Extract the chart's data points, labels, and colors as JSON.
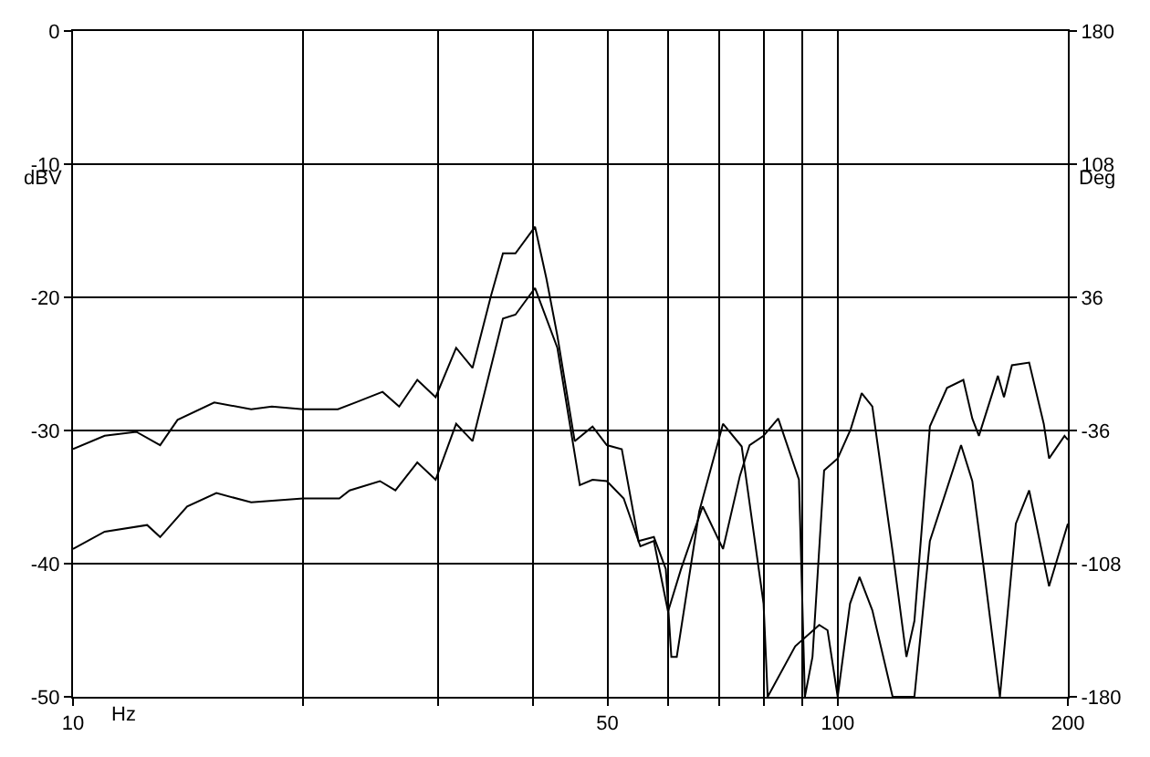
{
  "chart_data": {
    "type": "line",
    "xlabel": "Hz",
    "ylabel": "dBV",
    "y2label": "Deg",
    "log": "x",
    "grid": true,
    "marker": "none",
    "line_style": "solid",
    "xlim": [
      10,
      200
    ],
    "xticks": [
      10,
      {
        "value": 20,
        "label": null
      },
      {
        "value": 30,
        "label": null
      },
      {
        "value": 40,
        "label": null
      },
      50,
      {
        "value": 60,
        "label": null
      },
      {
        "value": 70,
        "label": null
      },
      {
        "value": 80,
        "label": null
      },
      {
        "value": 90,
        "label": null
      },
      100,
      200
    ],
    "ylim": [
      -50,
      0
    ],
    "yticks": [
      0,
      -10,
      -20,
      -30,
      -40,
      -50
    ],
    "y2lim": [
      -180,
      180
    ],
    "y2ticks": [
      180,
      108,
      36,
      -36,
      -108,
      -180
    ],
    "series": [
      {
        "color": "#000000",
        "x": [
          10,
          11,
          12.1,
          13,
          13.7,
          15.3,
          17.1,
          18.2,
          20,
          22.2,
          23.4,
          25.4,
          26.7,
          28.2,
          29.8,
          31.7,
          33.3,
          35.2,
          36.5,
          37.9,
          40.2,
          41.6,
          43,
          45.3,
          47.8,
          49.9,
          52.2,
          54.9,
          57.5,
          59.6,
          60.6,
          61.6,
          65.9,
          70.8,
          74.9,
          80,
          81,
          88,
          94.6,
          97,
          100,
          103.8,
          106.8,
          111,
          118,
          126,
          132,
          145,
          150,
          155,
          163,
          171,
          178,
          189,
          200
        ],
        "values": [
          -31.4,
          -30.4,
          -30.1,
          -31.1,
          -29.2,
          -27.9,
          -28.4,
          -28.2,
          -28.4,
          -28.4,
          -27.9,
          -27.1,
          -28.2,
          -26.2,
          -27.5,
          -23.8,
          -25.3,
          -19.9,
          -16.7,
          -16.7,
          -14.7,
          -18.6,
          -22.9,
          -30.8,
          -29.7,
          -31.1,
          -31.4,
          -38.3,
          -38,
          -40.4,
          -47,
          -47,
          -36.1,
          -29.5,
          -31.2,
          -43,
          -50,
          -46.2,
          -44.6,
          -45,
          -50,
          -43,
          -41,
          -43.5,
          -50,
          -50,
          -38.3,
          -31.1,
          -33.8,
          -40,
          -50,
          -37,
          -34.5,
          -41.7,
          -37
        ]
      },
      {
        "color": "#000000",
        "x": [
          10,
          11,
          12.5,
          13,
          14.1,
          15.4,
          17.1,
          20,
          22.3,
          23,
          25.2,
          26.4,
          28.2,
          29.8,
          31.7,
          33.3,
          36.5,
          37.9,
          40.2,
          43,
          46,
          47.8,
          49.9,
          52.5,
          55.2,
          57.5,
          60,
          62.4,
          66.6,
          70.8,
          74.5,
          76.7,
          80,
          83.6,
          89,
          90.6,
          92.7,
          96,
          100,
          104,
          107.5,
          111,
          118,
          123,
          126,
          132,
          139,
          146,
          150,
          153,
          162,
          165,
          169,
          178,
          186,
          189,
          198,
          200
        ],
        "values": [
          -38.9,
          -37.6,
          -37.1,
          -38,
          -35.7,
          -34.7,
          -35.4,
          -35.1,
          -35.1,
          -34.5,
          -33.8,
          -34.5,
          -32.4,
          -33.7,
          -29.5,
          -30.8,
          -21.6,
          -21.3,
          -19.3,
          -23.8,
          -34.1,
          -33.7,
          -33.8,
          -35.1,
          -38.7,
          -38.3,
          -43.6,
          -40.4,
          -35.7,
          -38.9,
          -33.4,
          -31.1,
          -30.4,
          -29.1,
          -33.7,
          -50,
          -47,
          -33,
          -32.1,
          -29.9,
          -27.2,
          -28.2,
          -39.1,
          -47,
          -44.3,
          -29.7,
          -26.8,
          -26.2,
          -29.1,
          -30.4,
          -25.9,
          -27.5,
          -25.1,
          -24.9,
          -29.5,
          -32.1,
          -30.4,
          -30.7
        ]
      }
    ]
  }
}
